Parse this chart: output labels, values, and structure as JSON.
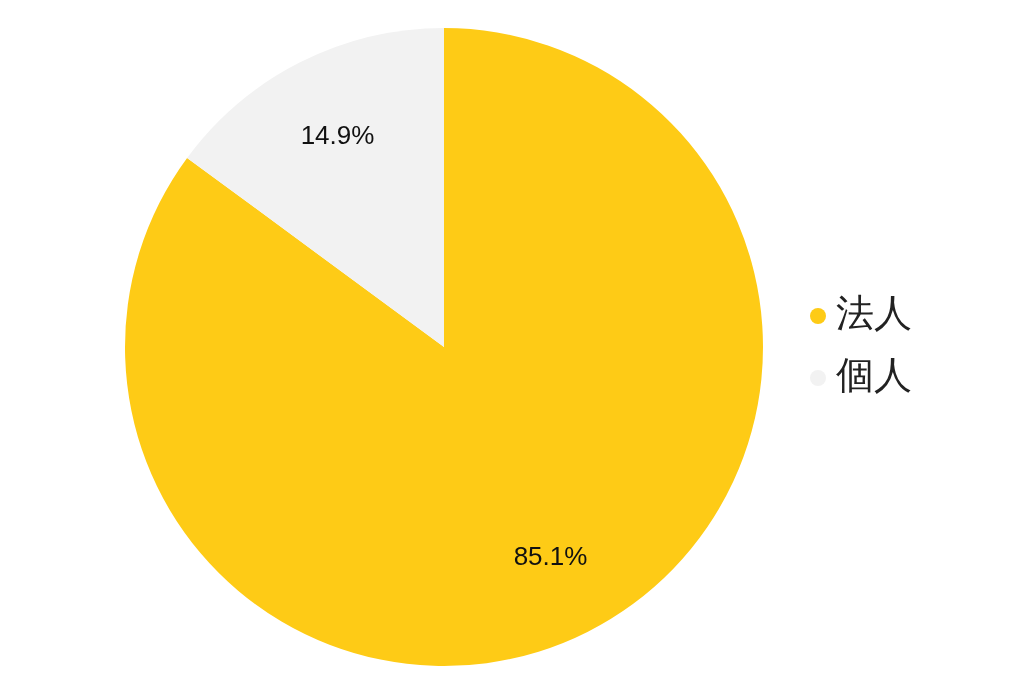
{
  "chart_data": {
    "type": "pie",
    "categories": [
      "法人",
      "個人"
    ],
    "values": [
      85.1,
      14.9
    ],
    "colors": [
      "#fecb16",
      "#f2f2f2"
    ],
    "value_labels": [
      "85.1%",
      "14.9%"
    ],
    "legend": "right"
  }
}
